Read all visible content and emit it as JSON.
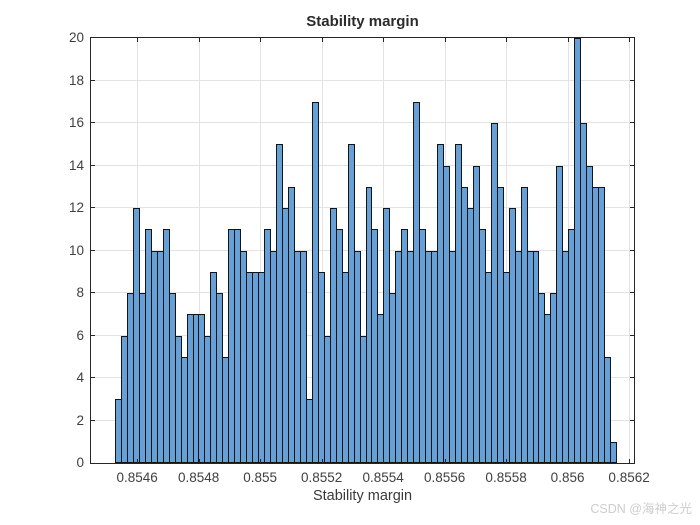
{
  "chart_data": {
    "type": "bar",
    "subtype": "histogram",
    "title": "Stability margin",
    "xlabel": "Stability margin",
    "ylabel": "",
    "grid": true,
    "xlim": [
      0.85445,
      0.856216
    ],
    "ylim": [
      0,
      20
    ],
    "bin_start": 0.854528,
    "bin_width": 1.94e-05,
    "counts": [
      3,
      6,
      8,
      12,
      8,
      11,
      10,
      10,
      11,
      8,
      6,
      5,
      7,
      7,
      7,
      6,
      9,
      8,
      5,
      11,
      11,
      10,
      9,
      9,
      9,
      11,
      10,
      15,
      12,
      13,
      10,
      10,
      3,
      17,
      9,
      6,
      12,
      11,
      9,
      15,
      10,
      6,
      13,
      11,
      7,
      12,
      8,
      10,
      11,
      10,
      17,
      11,
      10,
      10,
      15,
      14,
      10,
      15,
      13,
      12,
      14,
      11,
      9,
      16,
      13,
      9,
      12,
      10,
      13,
      10,
      10,
      8,
      7,
      8,
      14,
      10,
      11,
      20,
      16,
      14,
      13,
      13,
      5,
      1
    ],
    "xticks": [
      {
        "value": 0.8546,
        "label": "0.8546"
      },
      {
        "value": 0.8548,
        "label": "0.8548"
      },
      {
        "value": 0.855,
        "label": "0.855"
      },
      {
        "value": 0.8552,
        "label": "0.8552"
      },
      {
        "value": 0.8554,
        "label": "0.8554"
      },
      {
        "value": 0.8556,
        "label": "0.8556"
      },
      {
        "value": 0.8558,
        "label": "0.8558"
      },
      {
        "value": 0.856,
        "label": "0.856"
      },
      {
        "value": 0.8562,
        "label": "0.8562"
      }
    ],
    "yticks": [
      {
        "value": 0,
        "label": "0"
      },
      {
        "value": 2,
        "label": "2"
      },
      {
        "value": 4,
        "label": "4"
      },
      {
        "value": 6,
        "label": "6"
      },
      {
        "value": 8,
        "label": "8"
      },
      {
        "value": 10,
        "label": "10"
      },
      {
        "value": 12,
        "label": "12"
      },
      {
        "value": 14,
        "label": "14"
      },
      {
        "value": 16,
        "label": "16"
      },
      {
        "value": 18,
        "label": "18"
      },
      {
        "value": 20,
        "label": "20"
      }
    ],
    "colors": {
      "bar_fill": "#66a0d7",
      "bar_edge": "#141414",
      "grid": "#e3e3e3",
      "axis": "#262626",
      "tick_label": "#404040",
      "title": "#2b2b2b",
      "watermark": "#cdcdcd"
    }
  },
  "watermark": {
    "text": "CSDN @海神之光"
  }
}
